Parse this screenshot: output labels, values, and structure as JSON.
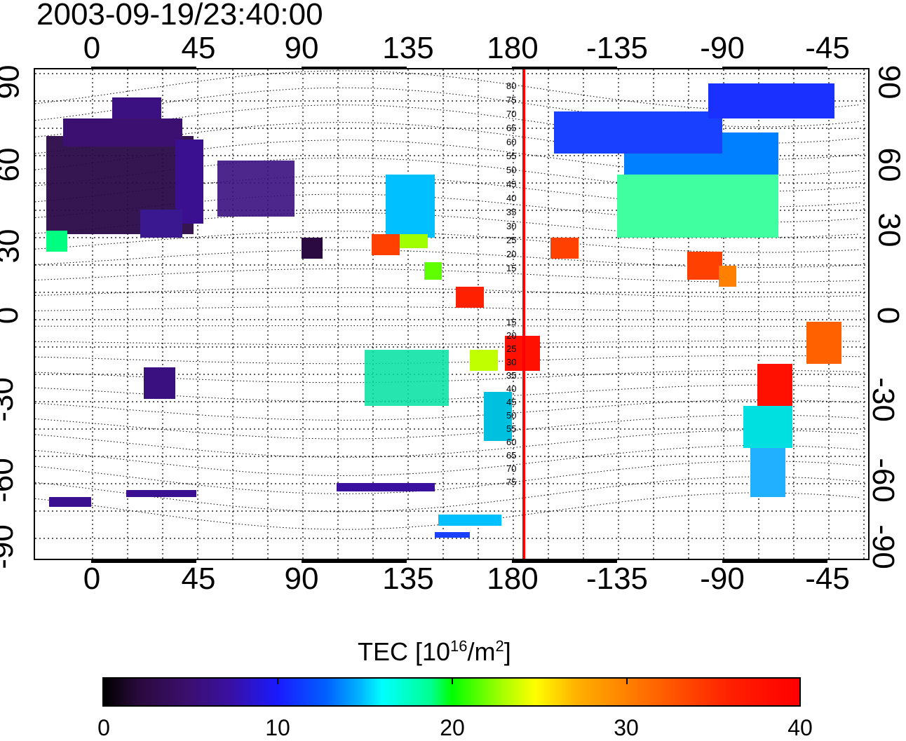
{
  "timestamp": "2003-09-19/23:40:00",
  "map": {
    "lon_ticks": [
      "0",
      "45",
      "90",
      "135",
      "180",
      "-135",
      "-90",
      "-45"
    ],
    "lat_ticks": [
      "90",
      "60",
      "30",
      "0",
      "-30",
      "-60",
      "-90"
    ],
    "contour_labels": [
      "80",
      "75",
      "70",
      "65",
      "60",
      "55",
      "50",
      "45",
      "40",
      "35",
      "30",
      "25",
      "20",
      "15",
      "15",
      "20",
      "25",
      "30",
      "35",
      "40",
      "45",
      "50",
      "55",
      "60",
      "65",
      "70",
      "75"
    ],
    "terminator_color": "#ff0000"
  },
  "colorbar": {
    "title_prefix": "TEC  [10",
    "title_sup1": "16",
    "title_mid": "/m",
    "title_sup2": "2",
    "title_suffix": "]",
    "ticks": [
      "0",
      "10",
      "20",
      "30",
      "40"
    ],
    "range": [
      0,
      40
    ]
  }
}
